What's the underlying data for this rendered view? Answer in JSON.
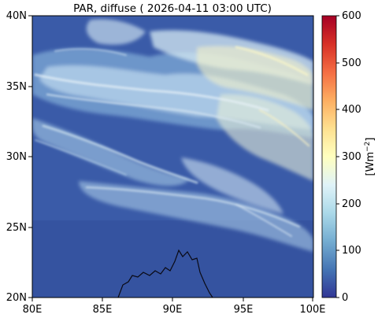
{
  "title": "PAR, diffuse ( 2026-04-11 03:00 UTC)",
  "map": {
    "lon_range": [
      80,
      100
    ],
    "lat_range": [
      20,
      40
    ],
    "x_ticks": [
      "80E",
      "85E",
      "90E",
      "95E",
      "100E"
    ],
    "y_ticks": [
      "20N",
      "25N",
      "30N",
      "35N",
      "40N"
    ],
    "background_color": "#3a5ba8"
  },
  "colorbar": {
    "label": "[Wm",
    "label_superscript": "−2",
    "label_suffix": "]",
    "min": 0,
    "max": 600,
    "ticks": [
      "0",
      "100",
      "200",
      "300",
      "400",
      "500",
      "600"
    ],
    "colormap": "RdYlBu_r",
    "colors": [
      "#313695",
      "#4575b4",
      "#74add1",
      "#abd9e9",
      "#e0f3f8",
      "#ffffbf",
      "#fee090",
      "#fdae61",
      "#f46d43",
      "#d73027",
      "#a50026"
    ]
  }
}
